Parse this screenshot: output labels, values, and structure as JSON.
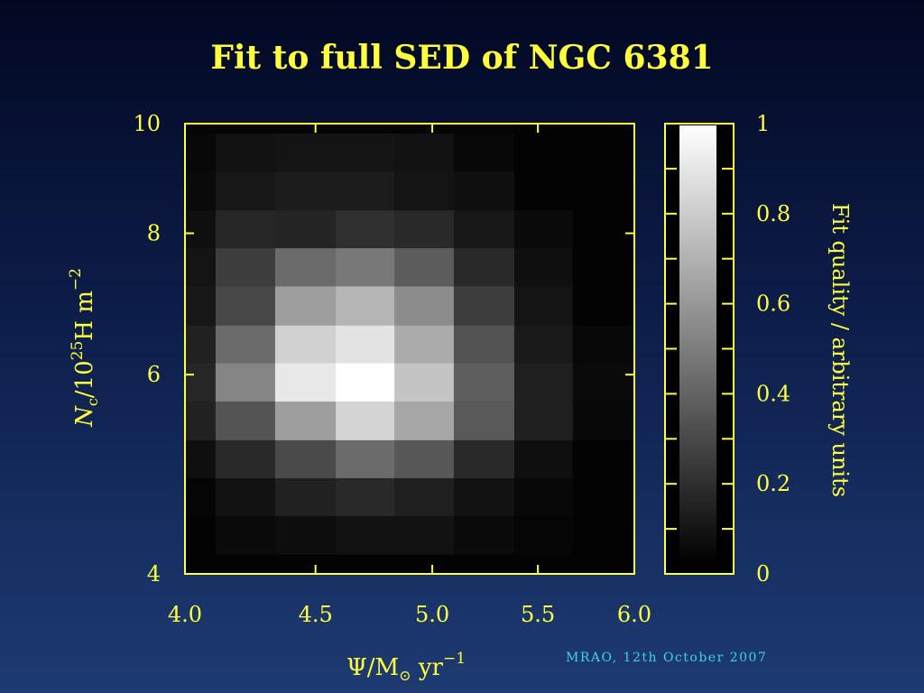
{
  "chart_data": {
    "type": "heatmap",
    "title": "Fit to full SED of NGC 6381",
    "xlabel": {
      "psi": "Ψ/M",
      "sun": "⊙",
      "unit": " yr",
      "exp": "−1"
    },
    "ylabel": {
      "n": "N",
      "sub": "c",
      "mid": "/10",
      "exp": "25",
      "unit": "H m",
      "exp2": "−2"
    },
    "colorbar_label": "Fit quality / arbitrary units",
    "x_scale": "log",
    "y_scale": "log",
    "xlim": [
      4.0,
      6.0
    ],
    "ylim": [
      4,
      10
    ],
    "clim": [
      0,
      1
    ],
    "colormap": "gray",
    "x_ticks": [
      4.5,
      5.0,
      5.5
    ],
    "x_tick_labels": [
      {
        "value": 4.0,
        "label": "4.0"
      },
      {
        "value": 4.5,
        "label": "4.5"
      },
      {
        "value": 5.0,
        "label": "5.0"
      },
      {
        "value": 5.5,
        "label": "5.5"
      },
      {
        "value": 6.0,
        "label": "6.0"
      }
    ],
    "y_ticks": [
      6,
      8
    ],
    "y_tick_labels": [
      {
        "value": 10,
        "label": "10"
      },
      {
        "value": 8,
        "label": "8"
      },
      {
        "value": 6,
        "label": "6"
      },
      {
        "value": 4,
        "label": "4"
      }
    ],
    "colorbar_tick_labels": [
      {
        "value": 1,
        "label": "1"
      },
      {
        "value": 0.8,
        "label": "0.8"
      },
      {
        "value": 0.6,
        "label": "0.6"
      },
      {
        "value": 0.4,
        "label": "0.4"
      },
      {
        "value": 0.2,
        "label": "0.2"
      },
      {
        "value": 0,
        "label": "0"
      }
    ],
    "x_edges": [
      4.0,
      4.112,
      4.339,
      4.583,
      4.832,
      5.098,
      5.384,
      5.676,
      6.0
    ],
    "y_edges": [
      10,
      9.8,
      9.07,
      8.38,
      7.76,
      7.18,
      6.63,
      6.14,
      5.68,
      5.25,
      4.86,
      4.5,
      4.16,
      4
    ],
    "values": [
      [
        0.02,
        0.02,
        0.02,
        0.02,
        0.02,
        0.02,
        0.01,
        0.01
      ],
      [
        0.03,
        0.07,
        0.08,
        0.08,
        0.07,
        0.03,
        0.01,
        0.01
      ],
      [
        0.04,
        0.09,
        0.11,
        0.11,
        0.08,
        0.06,
        0.01,
        0.01
      ],
      [
        0.06,
        0.15,
        0.14,
        0.19,
        0.16,
        0.09,
        0.04,
        0.01
      ],
      [
        0.08,
        0.24,
        0.42,
        0.47,
        0.36,
        0.16,
        0.06,
        0.01
      ],
      [
        0.09,
        0.28,
        0.62,
        0.71,
        0.55,
        0.24,
        0.08,
        0.01
      ],
      [
        0.13,
        0.42,
        0.82,
        0.89,
        0.67,
        0.32,
        0.1,
        0.03
      ],
      [
        0.15,
        0.52,
        0.91,
        1.0,
        0.77,
        0.37,
        0.12,
        0.04
      ],
      [
        0.13,
        0.33,
        0.62,
        0.83,
        0.65,
        0.35,
        0.12,
        0.03
      ],
      [
        0.06,
        0.16,
        0.29,
        0.42,
        0.34,
        0.16,
        0.06,
        0.01
      ],
      [
        0.02,
        0.07,
        0.13,
        0.16,
        0.12,
        0.07,
        0.03,
        0.01
      ],
      [
        0.01,
        0.04,
        0.05,
        0.07,
        0.07,
        0.04,
        0.02,
        0.01
      ],
      [
        0.01,
        0.01,
        0.01,
        0.01,
        0.01,
        0.01,
        0.01,
        0.01
      ]
    ]
  },
  "footer": "MRAO, 12th October 2007",
  "colors": {
    "axis": "#ffff3c",
    "footer": "#3fd2e6"
  }
}
